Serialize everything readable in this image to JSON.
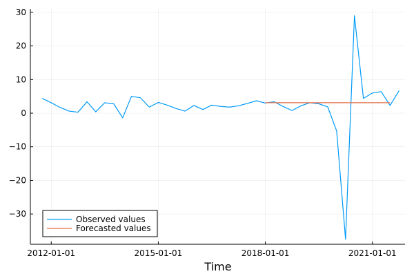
{
  "chart_data": {
    "type": "line",
    "title": "",
    "xlabel": "Time",
    "ylabel": "",
    "xlim": [
      "2011-06-01",
      "2021-12-01"
    ],
    "ylim": [
      -39,
      31
    ],
    "grid": true,
    "legend_position": "bottom-left",
    "x_ticks": [
      "2012-01-01",
      "2015-01-01",
      "2018-01-01",
      "2021-01-01"
    ],
    "y_ticks": [
      30,
      20,
      10,
      0,
      -10,
      -20,
      -30
    ],
    "y_tick_labels": [
      "30",
      "20",
      "10",
      "0",
      "−10",
      "−20",
      "−30"
    ],
    "series": [
      {
        "name": "Observed values",
        "color": "#009AFA",
        "x": [
          "2011-10-01",
          "2012-01-01",
          "2012-04-01",
          "2012-07-01",
          "2012-10-01",
          "2013-01-01",
          "2013-04-01",
          "2013-07-01",
          "2013-10-01",
          "2014-01-01",
          "2014-04-01",
          "2014-07-01",
          "2014-10-01",
          "2015-01-01",
          "2015-04-01",
          "2015-07-01",
          "2015-10-01",
          "2016-01-01",
          "2016-04-01",
          "2016-07-01",
          "2016-10-01",
          "2017-01-01",
          "2017-04-01",
          "2017-07-01",
          "2017-10-01",
          "2018-01-01",
          "2018-04-01",
          "2018-07-01",
          "2018-10-01",
          "2019-01-01",
          "2019-04-01",
          "2019-07-01",
          "2019-10-01",
          "2020-01-01",
          "2020-04-01",
          "2020-07-01",
          "2020-10-01",
          "2021-01-01",
          "2021-04-01",
          "2021-07-01",
          "2021-10-01"
        ],
        "y": [
          4.4,
          3.1,
          1.7,
          0.6,
          0.3,
          3.4,
          0.4,
          3.1,
          2.8,
          -1.4,
          5.0,
          4.6,
          1.8,
          3.2,
          2.4,
          1.4,
          0.6,
          2.3,
          1.1,
          2.4,
          2.0,
          1.8,
          2.2,
          2.9,
          3.7,
          3.0,
          3.4,
          2.0,
          0.8,
          2.2,
          3.1,
          2.8,
          1.9,
          -5.3,
          -37.5,
          29.0,
          4.4,
          6.0,
          6.4,
          2.3,
          6.7
        ]
      },
      {
        "name": "Forecasted values",
        "color": "#E26F46",
        "x": [
          "2018-01-01",
          "2021-07-01"
        ],
        "y": [
          3.1,
          3.1
        ]
      }
    ]
  }
}
